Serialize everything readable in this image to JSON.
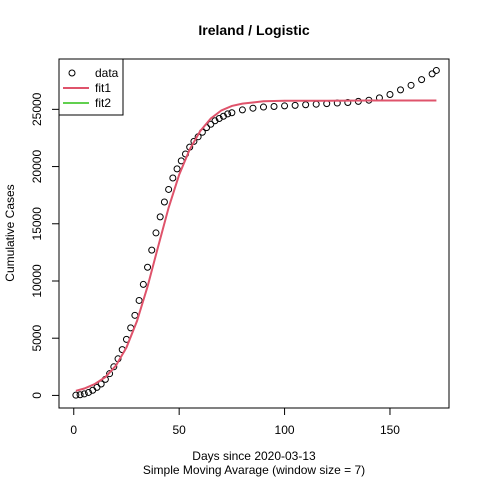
{
  "chart_data": {
    "type": "scatter",
    "title": "Ireland / Logistic",
    "xlabel": "Days since 2020-03-13",
    "subtitle": "Simple Moving Avarage (window size = 7)",
    "ylabel": "Cumulative Cases",
    "xlim": [
      -7.0,
      178.0
    ],
    "ylim": [
      -1100,
      29400
    ],
    "xticks": [
      0,
      50,
      100,
      150
    ],
    "yticks": [
      0,
      5000,
      10000,
      15000,
      20000,
      25000
    ],
    "legend": {
      "position": "top-left",
      "entries": [
        {
          "label": "data",
          "symbol": "open-circle",
          "color": "#000000"
        },
        {
          "label": "fit1",
          "symbol": "line",
          "color": "#DF536B"
        },
        {
          "label": "fit2",
          "symbol": "line",
          "color": "#61D04F"
        }
      ]
    },
    "series": [
      {
        "name": "data",
        "style": "open-circle",
        "color": "#000000",
        "x": [
          1,
          3,
          5,
          7,
          9,
          11,
          13,
          15,
          17,
          19,
          21,
          23,
          25,
          27,
          29,
          31,
          33,
          35,
          37,
          39,
          41,
          43,
          45,
          47,
          49,
          51,
          53,
          55,
          57,
          59,
          61,
          63,
          65,
          67,
          69,
          71,
          73,
          75,
          80,
          85,
          90,
          95,
          100,
          105,
          110,
          115,
          120,
          125,
          130,
          135,
          140,
          145,
          150,
          155,
          160,
          165,
          170,
          172
        ],
        "y": [
          20,
          60,
          130,
          260,
          450,
          700,
          1000,
          1400,
          1900,
          2500,
          3200,
          4000,
          4900,
          5900,
          7000,
          8300,
          9700,
          11200,
          12700,
          14200,
          15600,
          16900,
          18000,
          19000,
          19800,
          20500,
          21100,
          21700,
          22200,
          22600,
          23000,
          23400,
          23700,
          24000,
          24200,
          24400,
          24600,
          24700,
          24950,
          25100,
          25200,
          25250,
          25300,
          25350,
          25400,
          25450,
          25500,
          25550,
          25600,
          25700,
          25800,
          26000,
          26300,
          26700,
          27100,
          27600,
          28100,
          28400
        ]
      },
      {
        "name": "fit1",
        "style": "line",
        "color": "#DF536B",
        "x": [
          1,
          5,
          10,
          15,
          20,
          25,
          30,
          35,
          40,
          45,
          50,
          55,
          60,
          65,
          70,
          75,
          80,
          90,
          100,
          120,
          140,
          160,
          172
        ],
        "y": [
          400,
          600,
          1000,
          1600,
          2600,
          4200,
          6500,
          9500,
          13000,
          16400,
          19300,
          21500,
          23100,
          24200,
          24900,
          25300,
          25500,
          25700,
          25750,
          25760,
          25770,
          25770,
          25770
        ]
      },
      {
        "name": "fit2",
        "style": "line",
        "color": "#61D04F",
        "x": [],
        "y": []
      }
    ],
    "grid": false
  }
}
